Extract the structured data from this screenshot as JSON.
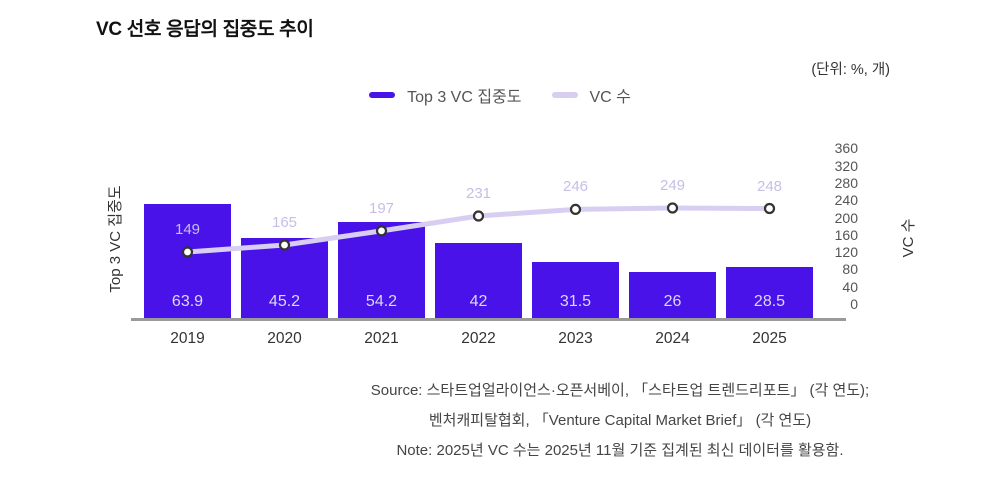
{
  "title": "VC 선호 응답의 집중도 추이",
  "unit_label": "(단위: %, 개)",
  "legend": [
    {
      "label": "Top 3 VC 집중도",
      "color": "#4812E8"
    },
    {
      "label": "VC 수",
      "color": "#D8CEF2"
    }
  ],
  "colors": {
    "bar": "#4812E8",
    "line": "#D8CEF2",
    "marker_fill": "#FFFFFF",
    "marker_stroke": "#333333",
    "axis_line": "#9A9A9A",
    "bar_value_text": "#DDD8F3",
    "line_value_text": "#C7BEE8"
  },
  "chart_data": {
    "type": "bar",
    "categories": [
      "2019",
      "2020",
      "2021",
      "2022",
      "2023",
      "2024",
      "2025"
    ],
    "series": [
      {
        "name": "Top 3 VC 집중도",
        "type": "bar",
        "axis": "left",
        "color": "#4812E8",
        "values": [
          63.9,
          45.2,
          54.2,
          42,
          31.5,
          26,
          28.5
        ]
      },
      {
        "name": "VC 수",
        "type": "line",
        "axis": "right",
        "color": "#D8CEF2",
        "values": [
          149,
          165,
          197,
          231,
          246,
          249,
          248
        ]
      }
    ],
    "title": "VC 선호 응답의 집중도 추이",
    "xlabel": "",
    "left_axis": {
      "label": "Top 3 VC 집중도",
      "range": [
        0,
        100
      ],
      "tick_labels_visible": false
    },
    "right_axis": {
      "label": "VC 수",
      "range": [
        0,
        360
      ],
      "ticks": [
        360,
        320,
        280,
        240,
        200,
        160,
        120,
        80,
        40,
        0
      ]
    },
    "grid": false,
    "legend_position": "top",
    "data_labels_visible": true
  },
  "footer": {
    "source_line1": "Source: 스타트업얼라이언스·오픈서베이, 「스타트업 트렌드리포트」 (각 연도);",
    "source_line2": "벤처캐피탈협회, 「Venture Capital Market Brief」 (각 연도)",
    "note": "Note: 2025년 VC 수는 2025년 11월 기준 집계된 최신 데이터를 활용함."
  }
}
